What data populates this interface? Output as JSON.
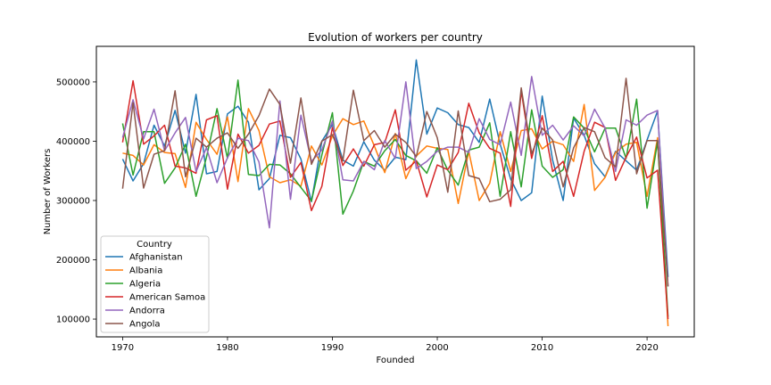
{
  "chart_data": {
    "type": "line",
    "title": "Evolution of workers per country",
    "xlabel": "Founded",
    "ylabel": "Number of Workers",
    "xlim": [
      1967.5,
      2024.5
    ],
    "ylim": [
      70000,
      560000
    ],
    "x_ticks": [
      1970,
      1980,
      1990,
      2000,
      2010,
      2020
    ],
    "y_ticks": [
      100000,
      200000,
      300000,
      400000,
      500000
    ],
    "y_tick_labels": [
      "100000",
      "200000",
      "300000",
      "400000",
      "500000"
    ],
    "grid": false,
    "legend": {
      "title": "Country",
      "placement": "lower-left"
    },
    "x": [
      1970,
      1971,
      1972,
      1973,
      1974,
      1975,
      1976,
      1977,
      1978,
      1979,
      1980,
      1981,
      1982,
      1983,
      1984,
      1985,
      1986,
      1987,
      1988,
      1989,
      1990,
      1991,
      1992,
      1993,
      1994,
      1995,
      1996,
      1997,
      1998,
      1999,
      2000,
      2001,
      2002,
      2003,
      2004,
      2005,
      2006,
      2007,
      2008,
      2009,
      2010,
      2011,
      2012,
      2013,
      2014,
      2015,
      2016,
      2017,
      2018,
      2019,
      2020,
      2021,
      2022
    ],
    "series": [
      {
        "name": "Afghanistan",
        "color": "#1f77b4",
        "values": [
          370000,
          333000,
          362000,
          427000,
          392000,
          452000,
          380000,
          479000,
          345000,
          349000,
          446000,
          459000,
          432000,
          318000,
          337000,
          410000,
          406000,
          370000,
          298000,
          400000,
          428000,
          368000,
          358000,
          399000,
          368000,
          351000,
          373000,
          369000,
          537000,
          412000,
          456000,
          448000,
          428000,
          423000,
          398000,
          471000,
          395000,
          336000,
          300000,
          313000,
          476000,
          368000,
          300000,
          439000,
          410000,
          362000,
          340000,
          383000,
          367000,
          351000,
          402000,
          451000,
          171000
        ]
      },
      {
        "name": "Albania",
        "color": "#ff7f0e",
        "values": [
          380000,
          376000,
          360000,
          394000,
          381000,
          379000,
          322000,
          432000,
          403000,
          378000,
          441000,
          332000,
          455000,
          418000,
          340000,
          330000,
          335000,
          324000,
          392000,
          360000,
          409000,
          438000,
          428000,
          434000,
          392000,
          347000,
          413000,
          337000,
          375000,
          392000,
          388000,
          386000,
          295000,
          383000,
          300000,
          329000,
          416000,
          349000,
          418000,
          421000,
          387000,
          400000,
          394000,
          366000,
          462000,
          317000,
          339000,
          381000,
          395000,
          398000,
          307000,
          406000,
          88000
        ]
      },
      {
        "name": "Algeria",
        "color": "#2ca02c",
        "values": [
          430000,
          343000,
          416000,
          416000,
          329000,
          355000,
          395000,
          307000,
          373000,
          455000,
          371000,
          503000,
          344000,
          342000,
          361000,
          360000,
          345000,
          322000,
          299000,
          377000,
          448000,
          277000,
          316000,
          366000,
          358000,
          384000,
          403000,
          376000,
          367000,
          346000,
          389000,
          351000,
          326000,
          385000,
          390000,
          431000,
          307000,
          416000,
          323000,
          453000,
          358000,
          339000,
          352000,
          441000,
          422000,
          382000,
          422000,
          422000,
          371000,
          471000,
          287000,
          400000,
          104000
        ]
      },
      {
        "name": "American Samoa",
        "color": "#d62728",
        "values": [
          398000,
          502000,
          395000,
          409000,
          427000,
          358000,
          355000,
          346000,
          436000,
          443000,
          319000,
          412000,
          380000,
          393000,
          429000,
          434000,
          339000,
          364000,
          283000,
          324000,
          423000,
          359000,
          387000,
          358000,
          394000,
          398000,
          453000,
          351000,
          367000,
          306000,
          360000,
          352000,
          381000,
          464000,
          414000,
          388000,
          380000,
          290000,
          485000,
          371000,
          443000,
          349000,
          366000,
          307000,
          383000,
          432000,
          423000,
          334000,
          373000,
          407000,
          338000,
          351000,
          100000
        ]
      },
      {
        "name": "Andorra",
        "color": "#9467bd",
        "values": [
          406000,
          470000,
          404000,
          454000,
          384000,
          414000,
          440000,
          349000,
          389000,
          330000,
          372000,
          405000,
          401000,
          365000,
          254000,
          468000,
          302000,
          444000,
          366000,
          385000,
          434000,
          335000,
          333000,
          366000,
          352000,
          401000,
          371000,
          500000,
          354000,
          366000,
          383000,
          390000,
          390000,
          381000,
          438000,
          403000,
          394000,
          466000,
          376000,
          509000,
          410000,
          427000,
          402000,
          426000,
          409000,
          454000,
          422000,
          349000,
          436000,
          427000,
          444000,
          452000,
          155000
        ]
      },
      {
        "name": "Angola",
        "color": "#8c564b",
        "values": [
          320000,
          465000,
          321000,
          378000,
          384000,
          485000,
          340000,
          405000,
          390000,
          405000,
          414000,
          388000,
          412000,
          443000,
          488000,
          462000,
          363000,
          473000,
          361000,
          400000,
          411000,
          367000,
          486000,
          401000,
          418000,
          390000,
          412000,
          398000,
          374000,
          450000,
          406000,
          314000,
          451000,
          342000,
          337000,
          298000,
          302000,
          318000,
          490000,
          379000,
          422000,
          402000,
          323000,
          389000,
          423000,
          416000,
          372000,
          357000,
          506000,
          345000,
          401000,
          401000,
          155000
        ]
      }
    ]
  }
}
